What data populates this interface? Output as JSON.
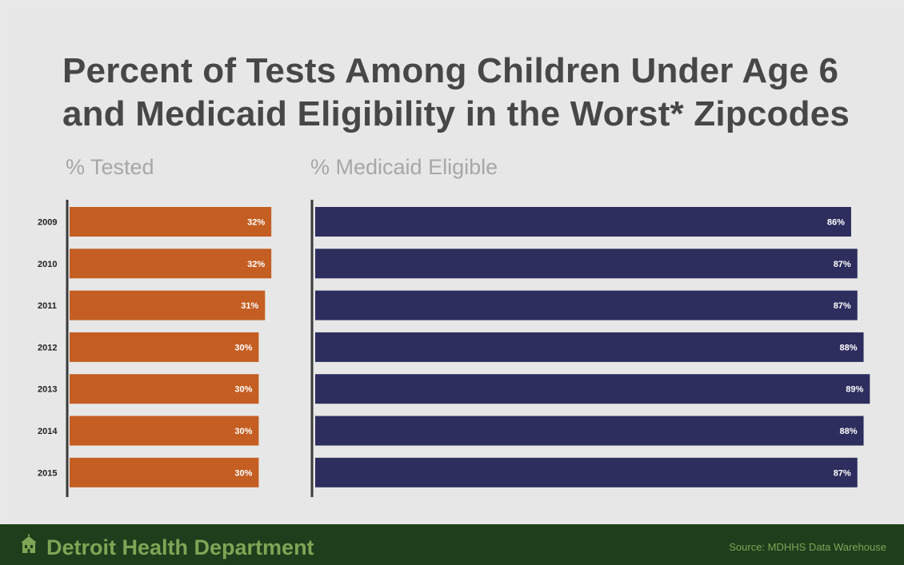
{
  "title_lines": [
    "Percent of Tests Among Children Under Age 6",
    "and Medicaid Eligibility in the Worst* Zipcodes"
  ],
  "footer": {
    "organization": "Detroit Health Department",
    "source": "Source:  MDHHS Data Warehouse",
    "logo_icon": "building-icon"
  },
  "colors": {
    "tested": "#c45e22",
    "medicaid": "#2d2d5e",
    "footer_bg": "#1e3e1c",
    "footer_text": "#7fa556"
  },
  "chart_data": [
    {
      "type": "bar",
      "orientation": "horizontal",
      "title": "% Tested",
      "categories": [
        "2009",
        "2010",
        "2011",
        "2012",
        "2013",
        "2014",
        "2015"
      ],
      "values": [
        32,
        32,
        31,
        30,
        30,
        30,
        30
      ],
      "value_labels": [
        "32%",
        "32%",
        "31%",
        "30%",
        "30%",
        "30%",
        "30%"
      ]
    },
    {
      "type": "bar",
      "orientation": "horizontal",
      "title": "%  Medicaid Eligible",
      "categories": [
        "2009",
        "2010",
        "2011",
        "2012",
        "2013",
        "2014",
        "2015"
      ],
      "values": [
        86,
        87,
        87,
        88,
        89,
        88,
        87
      ],
      "value_labels": [
        "86%",
        "87%",
        "87%",
        "88%",
        "89%",
        "88%",
        "87%"
      ]
    }
  ]
}
